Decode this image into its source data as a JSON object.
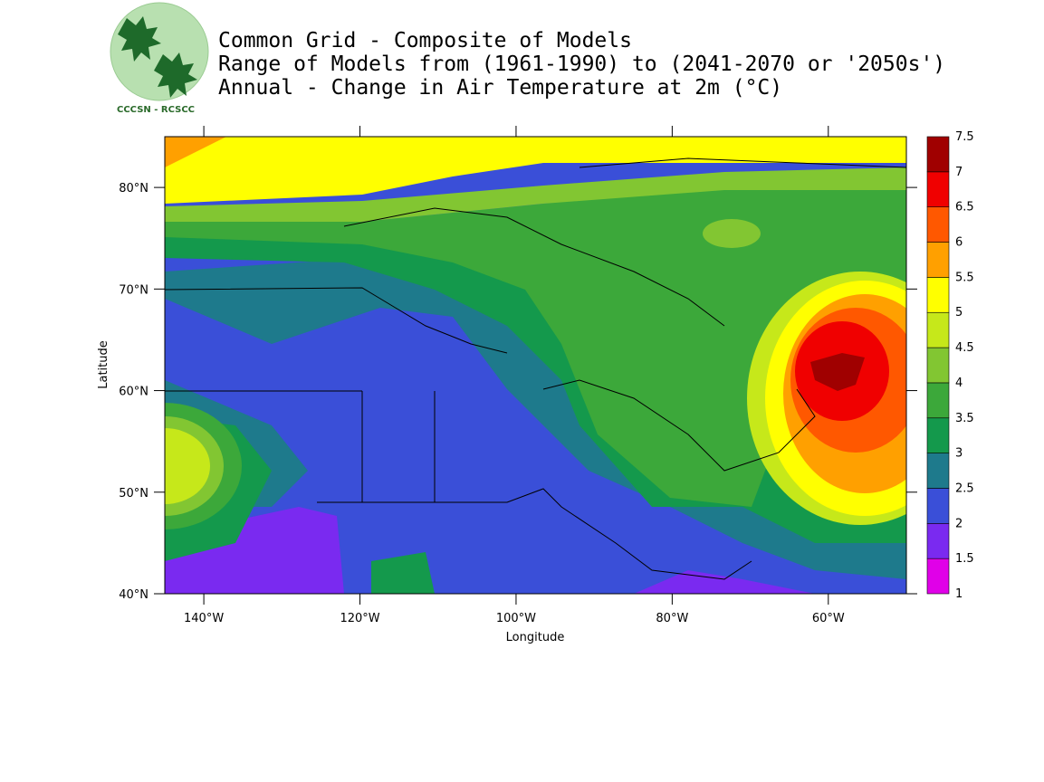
{
  "logo": {
    "label": "CCCSN - RCSCC"
  },
  "header": {
    "title": "Common Grid - Composite of Models",
    "subtitle": "Range of Models from (1961-1990) to (2041-2070 or '2050s')",
    "description": "Annual - Change in Air Temperature at 2m (°C)"
  },
  "map": {
    "xlabel": "Longitude",
    "ylabel": "Latitude",
    "xlim": [
      -145,
      -50
    ],
    "ylim": [
      40,
      85
    ],
    "xticks": [
      {
        "value": -140,
        "label": "140°W"
      },
      {
        "value": -120,
        "label": "120°W"
      },
      {
        "value": -100,
        "label": "100°W"
      },
      {
        "value": -80,
        "label": "80°W"
      },
      {
        "value": -60,
        "label": "60°W"
      }
    ],
    "yticks": [
      {
        "value": 40,
        "label": "40°N"
      },
      {
        "value": 50,
        "label": "50°N"
      },
      {
        "value": 60,
        "label": "60°N"
      },
      {
        "value": 70,
        "label": "70°N"
      },
      {
        "value": 80,
        "label": "80°N"
      }
    ]
  },
  "colorbar": {
    "levels": [
      1,
      1.5,
      2,
      2.5,
      3,
      3.5,
      4,
      4.5,
      5,
      5.5,
      6,
      6.5,
      7,
      7.5
    ],
    "colors": [
      "#e000e8",
      "#7a2af0",
      "#3a4fd8",
      "#1e7a8c",
      "#14994c",
      "#3ca83a",
      "#82c632",
      "#c6e81a",
      "#ffff00",
      "#ffa000",
      "#ff5800",
      "#f00000",
      "#a00000"
    ]
  }
}
